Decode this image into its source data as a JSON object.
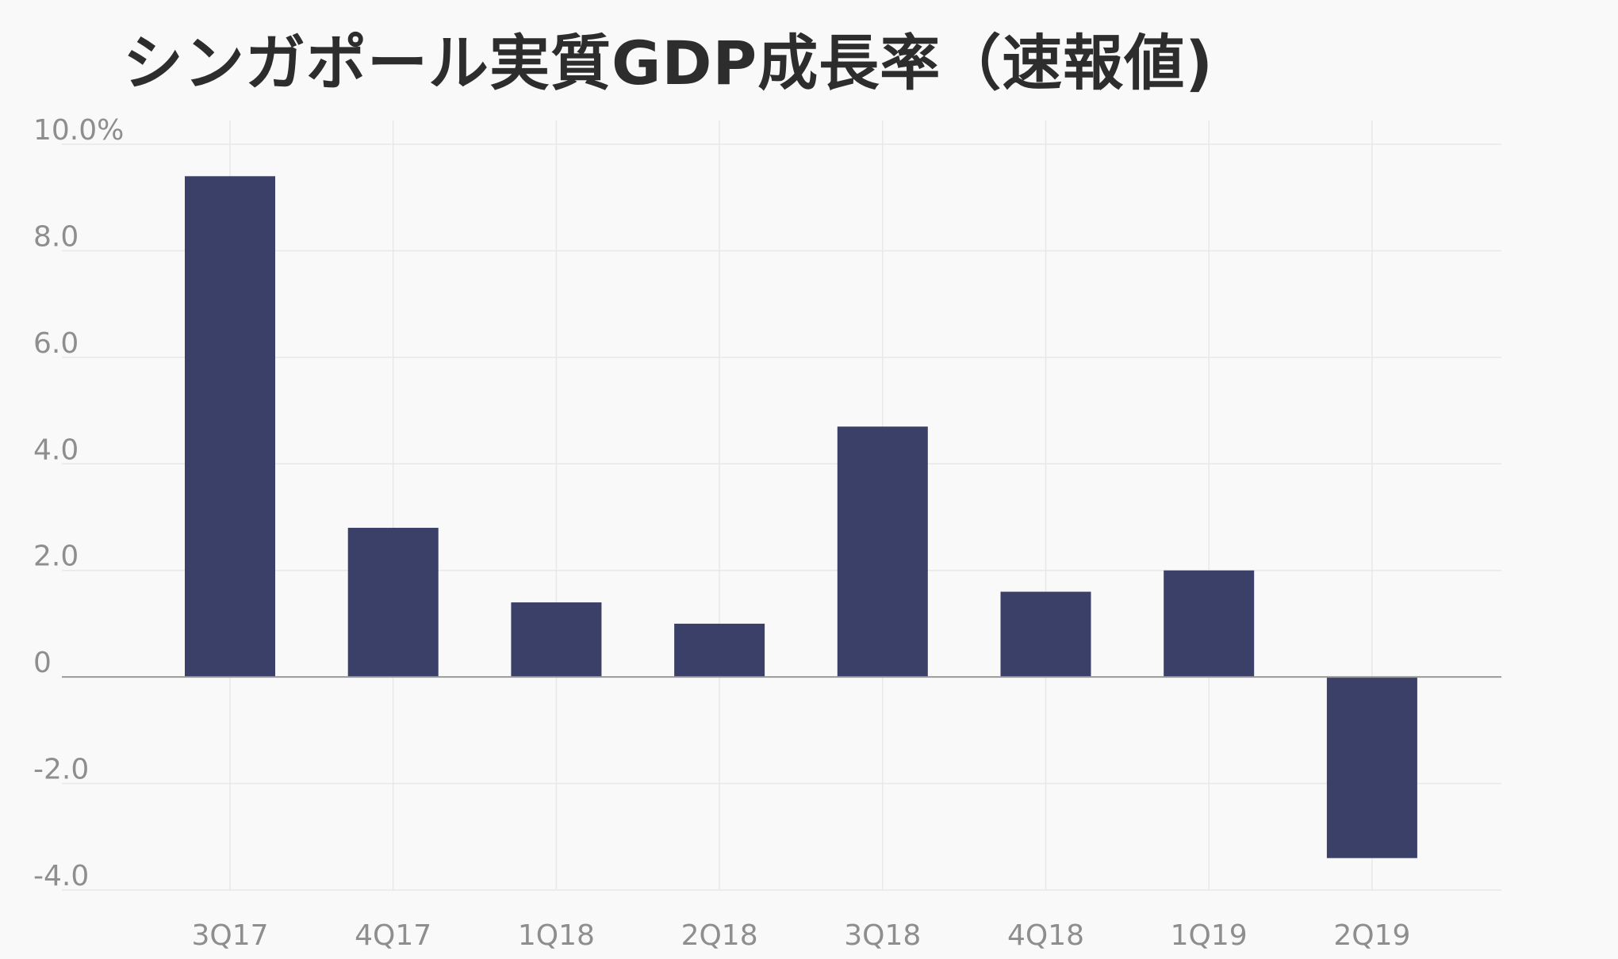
{
  "chart_data": {
    "type": "bar",
    "title": "シンガポール実質GDP成長率（速報値)",
    "xlabel": "",
    "ylabel": "",
    "categories": [
      "3Q17",
      "4Q17",
      "1Q18",
      "2Q18",
      "3Q18",
      "4Q18",
      "1Q19",
      "2Q19"
    ],
    "values": [
      9.4,
      2.8,
      1.4,
      1.0,
      4.7,
      1.6,
      2.0,
      -3.4
    ],
    "ylim": [
      -4.0,
      10.0
    ],
    "yticks": [
      10.0,
      8.0,
      6.0,
      4.0,
      2.0,
      0,
      -2.0,
      -4.0
    ],
    "ytick_labels": [
      "10.0%",
      "8.0",
      "6.0",
      "4.0",
      "2.0",
      "0",
      "-2.0",
      "-4.0"
    ],
    "grid": true,
    "legend": "none",
    "bar_color": "#3b4069",
    "grid_color": "#e8e8e8",
    "zero_line_color": "#9a9a9a",
    "tick_label_color": "#8e8e8e",
    "title_color": "#2d2d2d",
    "background_color": "#f9f9f9"
  }
}
